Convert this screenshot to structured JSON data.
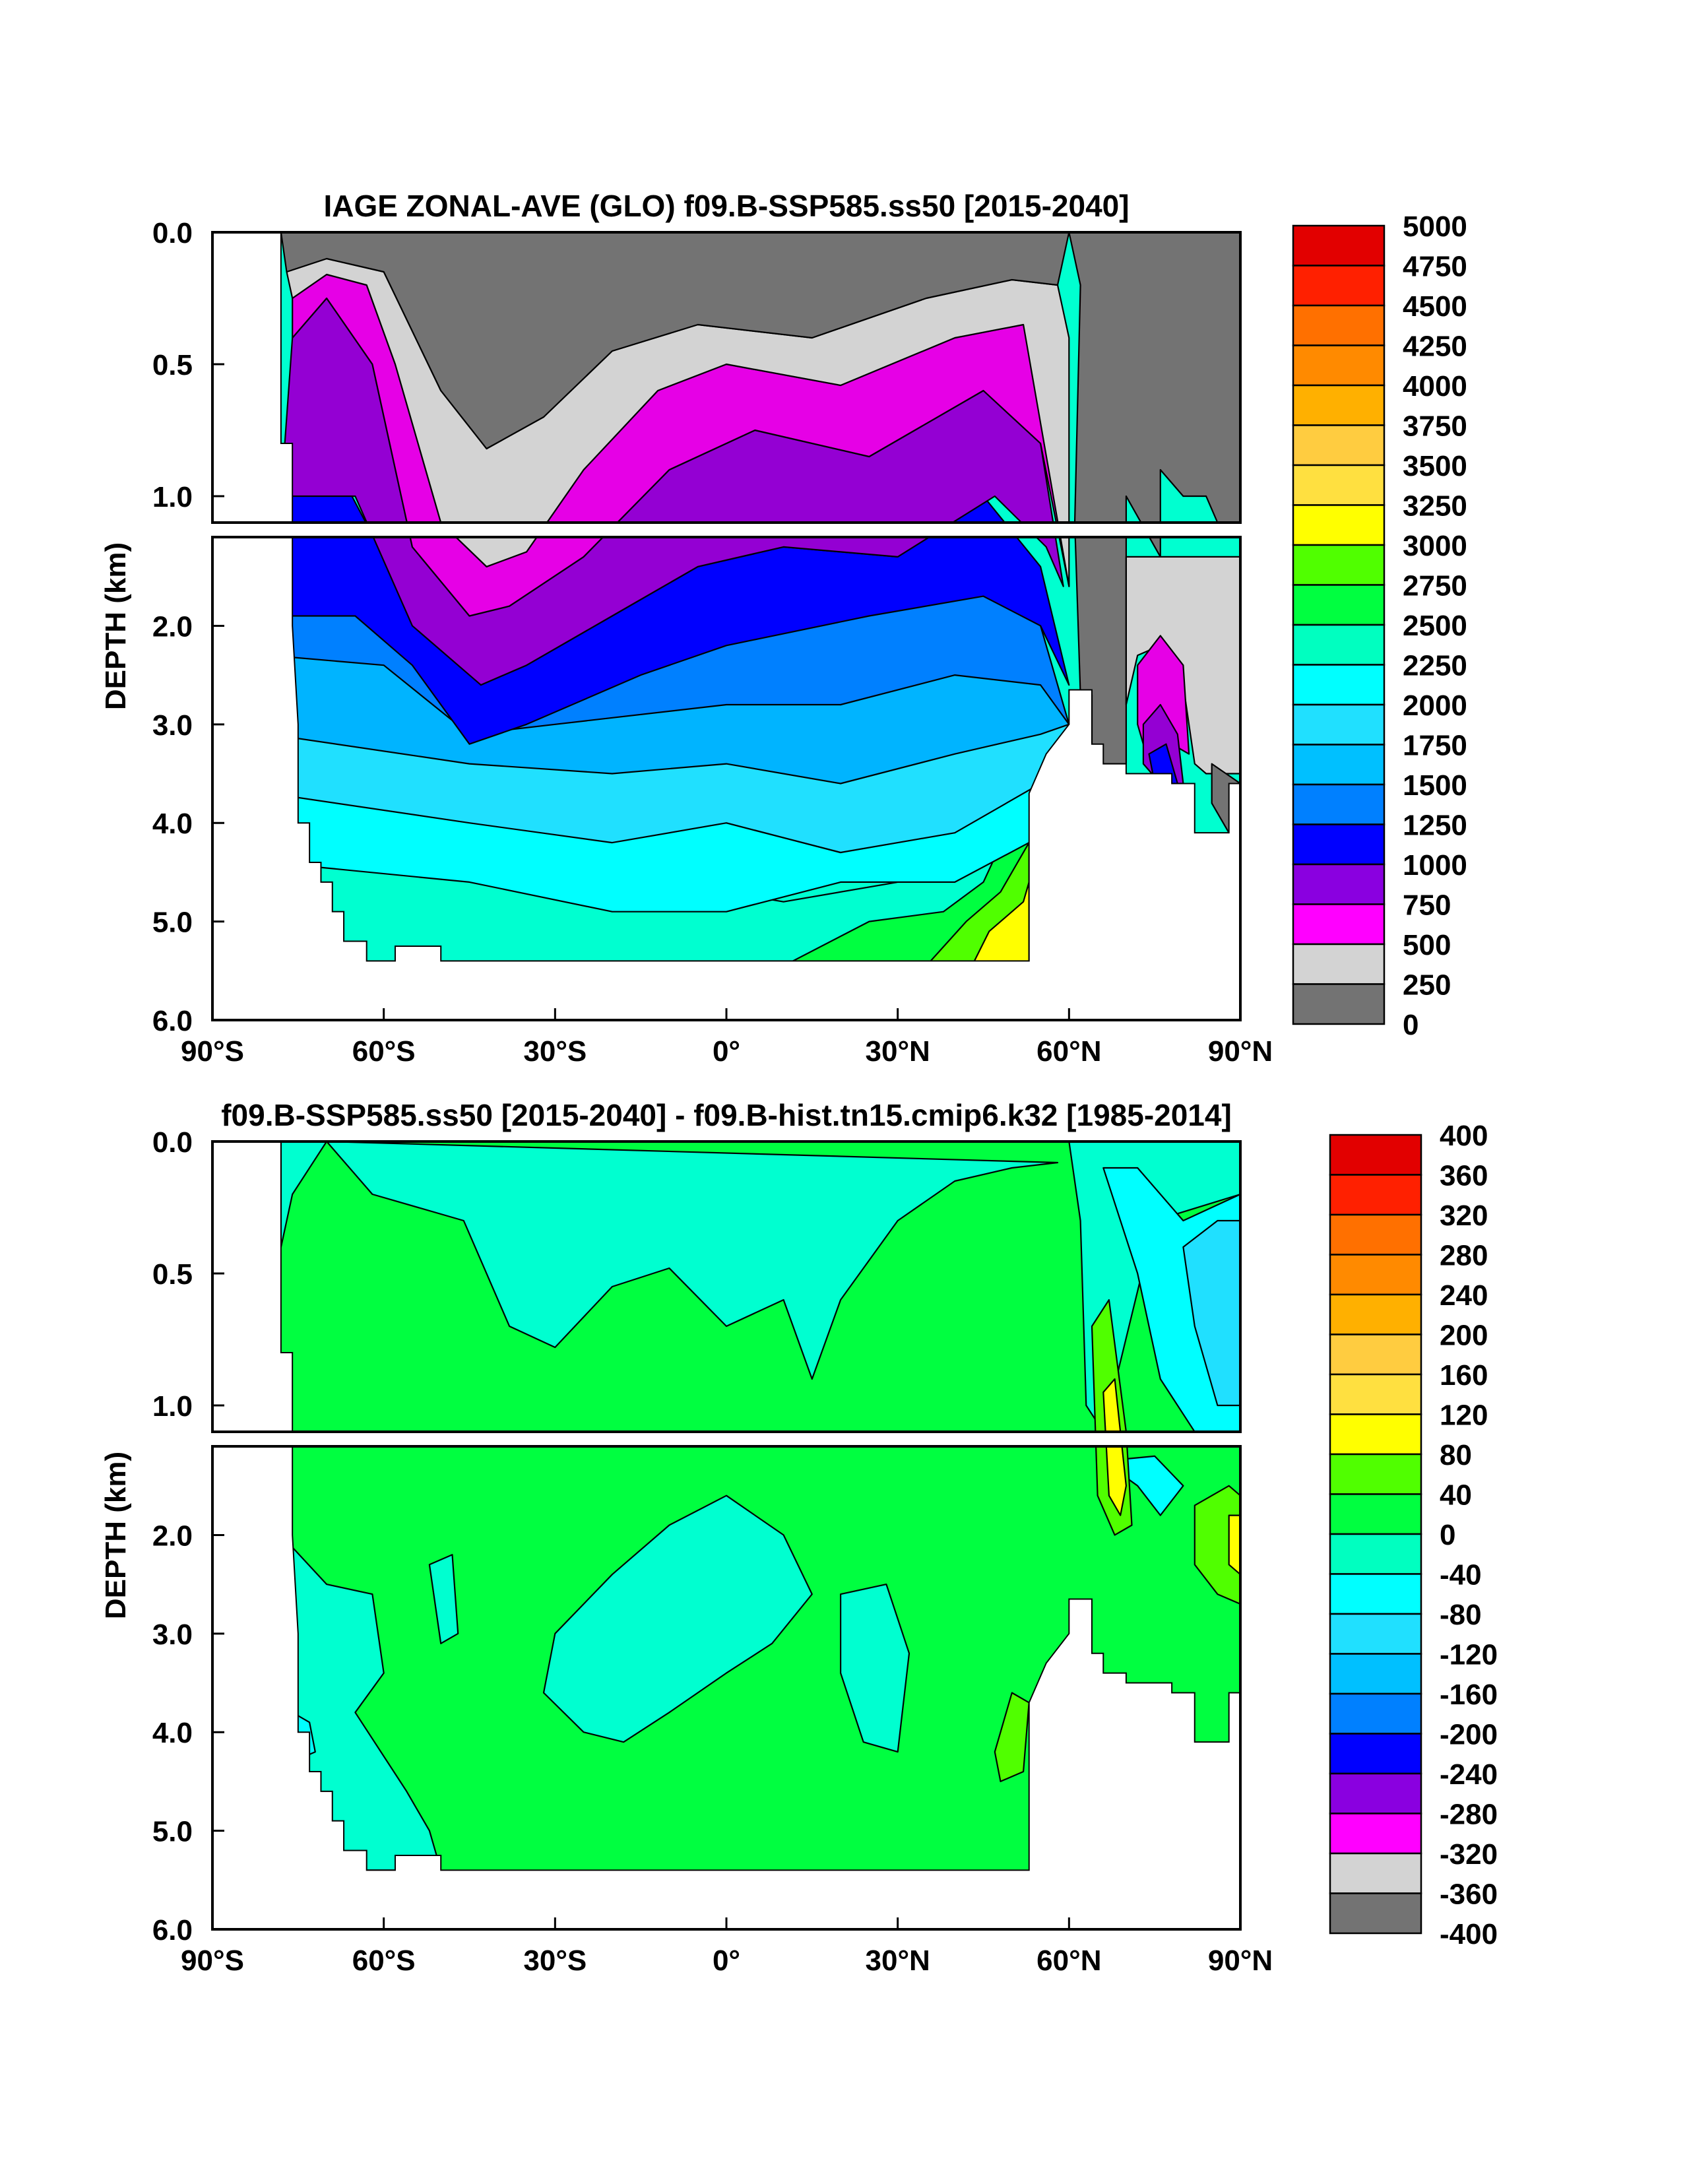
{
  "chart_data": [
    {
      "type": "heatmap",
      "title": "IAGE ZONAL-AVE (GLO) f09.B-SSP585.ss50 [2015-2040]",
      "ylabel": "DEPTH (km)",
      "xlabel": "",
      "x_ticks": [
        "90°S",
        "60°S",
        "30°S",
        "0°",
        "30°N",
        "60°N",
        "90°N"
      ],
      "x_tick_values": [
        -90,
        -60,
        -30,
        0,
        30,
        60,
        90
      ],
      "upper_panel": {
        "y_ticks": [
          "0.0",
          "0.5",
          "1.0"
        ],
        "y_tick_values": [
          0,
          0.5,
          1.0
        ],
        "ylim": [
          0,
          1.1
        ]
      },
      "lower_panel": {
        "y_ticks": [
          "2.0",
          "3.0",
          "4.0",
          "5.0",
          "6.0"
        ],
        "y_tick_values": [
          2,
          3,
          4,
          5,
          6
        ],
        "ylim": [
          1.1,
          6.0
        ]
      },
      "colorbar": {
        "labels": [
          "5000",
          "4750",
          "4500",
          "4250",
          "4000",
          "3750",
          "3500",
          "3250",
          "3000",
          "2750",
          "2500",
          "2250",
          "2000",
          "1750",
          "1500",
          "1250",
          "1000",
          "750",
          "500",
          "250",
          "0"
        ],
        "colors": [
          "#c40000",
          "#e20000",
          "#ff2000",
          "#ff7000",
          "#ff8a00",
          "#ffb000",
          "#ffcc40",
          "#ffe040",
          "#ffff00",
          "#50ff00",
          "#00ff40",
          "#00ffc0",
          "#00ffff",
          "#20e0ff",
          "#00c0ff",
          "#0080ff",
          "#0000ff",
          "#8a00e0",
          "#ff00ff",
          "#d3d3d3",
          "#737373"
        ]
      },
      "regions": [
        {
          "name": "deep-gray",
          "value": "<250",
          "color": "#737373"
        },
        {
          "name": "light-gray",
          "value": "250-500",
          "color": "#d3d3d3"
        },
        {
          "name": "magenta",
          "value": "500-750",
          "color": "#e600e6"
        },
        {
          "name": "purple",
          "value": "750-1000",
          "color": "#9400d3"
        },
        {
          "name": "blue",
          "value": "1000-1250",
          "color": "#0000ff"
        },
        {
          "name": "mid-blue",
          "value": "1250-1500",
          "color": "#0080ff"
        },
        {
          "name": "sky",
          "value": "1500-1750",
          "color": "#00b4ff"
        },
        {
          "name": "light-sky",
          "value": "1750-2000",
          "color": "#20e0ff"
        },
        {
          "name": "cyan",
          "value": "2000-2250",
          "color": "#00ffff"
        },
        {
          "name": "aqua",
          "value": "2250-2500",
          "color": "#00ffd0"
        },
        {
          "name": "green",
          "value": "2500-2750",
          "color": "#00ff40"
        },
        {
          "name": "lime",
          "value": "2750-3000",
          "color": "#50ff00"
        },
        {
          "name": "yellow",
          "value": "3000-3250",
          "color": "#ffff00"
        }
      ]
    },
    {
      "type": "heatmap",
      "title": "f09.B-SSP585.ss50 [2015-2040] - f09.B-hist.tn15.cmip6.k32 [1985-2014]",
      "ylabel": "DEPTH (km)",
      "xlabel": "",
      "x_ticks": [
        "90°S",
        "60°S",
        "30°S",
        "0°",
        "30°N",
        "60°N",
        "90°N"
      ],
      "x_tick_values": [
        -90,
        -60,
        -30,
        0,
        30,
        60,
        90
      ],
      "upper_panel": {
        "y_ticks": [
          "0.0",
          "0.5",
          "1.0"
        ],
        "y_tick_values": [
          0,
          0.5,
          1.0
        ],
        "ylim": [
          0,
          1.1
        ]
      },
      "lower_panel": {
        "y_ticks": [
          "2.0",
          "3.0",
          "4.0",
          "5.0",
          "6.0"
        ],
        "y_tick_values": [
          2,
          3,
          4,
          5,
          6
        ],
        "ylim": [
          1.1,
          6.0
        ]
      },
      "colorbar": {
        "labels": [
          "400",
          "360",
          "320",
          "280",
          "240",
          "200",
          "160",
          "120",
          "80",
          "40",
          "0",
          "-40",
          "-80",
          "-120",
          "-160",
          "-200",
          "-240",
          "-280",
          "-320",
          "-360",
          "-400"
        ],
        "colors": [
          "#c40000",
          "#e20000",
          "#ff2000",
          "#ff7000",
          "#ff8a00",
          "#ffb000",
          "#ffcc40",
          "#ffe040",
          "#ffff00",
          "#50ff00",
          "#00ff40",
          "#00ffc0",
          "#00ffff",
          "#20e0ff",
          "#00c0ff",
          "#0080ff",
          "#0000ff",
          "#8a00e0",
          "#ff00ff",
          "#d3d3d3",
          "#737373"
        ]
      },
      "regions": [
        {
          "name": "green",
          "value": "0-40",
          "color": "#00ff40"
        },
        {
          "name": "aqua",
          "value": "-40-0",
          "color": "#00ffd0"
        },
        {
          "name": "cyan",
          "value": "-80--40",
          "color": "#00ffff"
        },
        {
          "name": "light-sky",
          "value": "-120--80",
          "color": "#20e0ff"
        },
        {
          "name": "lime",
          "value": "40-80",
          "color": "#50ff00"
        },
        {
          "name": "yellow",
          "value": "80-120",
          "color": "#ffff00"
        }
      ]
    }
  ]
}
